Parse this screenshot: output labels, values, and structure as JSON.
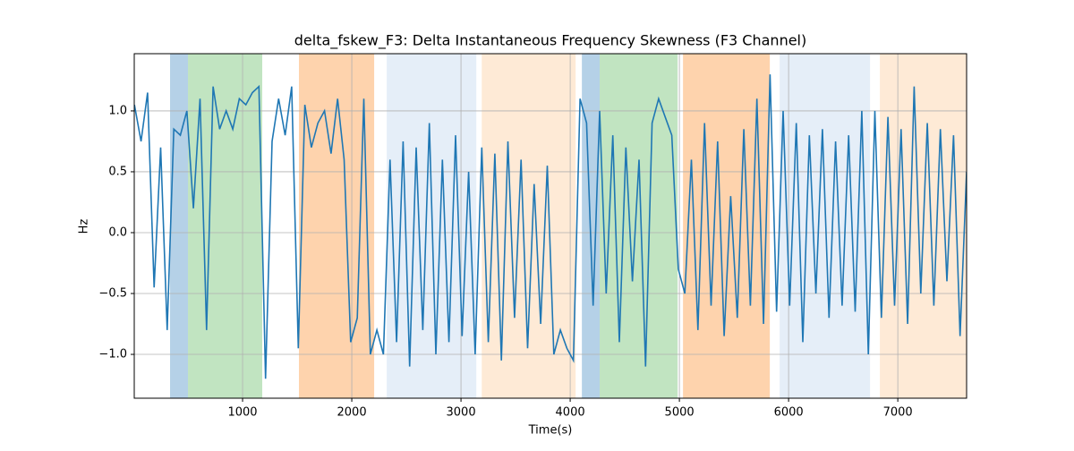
{
  "chart_data": {
    "type": "line",
    "title": "delta_fskew_F3: Delta Instantaneous Frequency Skewness (F3 Channel)",
    "x_label": "Time(s)",
    "y_label": "Hz",
    "xlim": [
      8,
      7630
    ],
    "ylim": [
      -1.36,
      1.47
    ],
    "xticks": [
      1000,
      2000,
      3000,
      4000,
      5000,
      6000,
      7000
    ],
    "yticks": [
      {
        "value": -1.0,
        "label": "−1.0"
      },
      {
        "value": -0.5,
        "label": "−0.5"
      },
      {
        "value": 0.0,
        "label": "0.0"
      },
      0.5,
      {
        "value": 1.0,
        "label": "1.0"
      }
    ],
    "grid": true,
    "spans": [
      {
        "start": 336,
        "end": 500,
        "color": "#b5d1e7"
      },
      {
        "start": 500,
        "end": 1180,
        "color": "#c1e4c1"
      },
      {
        "start": 1516,
        "end": 2205,
        "color": "#fed3ad"
      },
      {
        "start": 2320,
        "end": 3140,
        "color": "#e5eef8"
      },
      {
        "start": 3190,
        "end": 4050,
        "color": "#feead6"
      },
      {
        "start": 4107,
        "end": 4270,
        "color": "#b5d1e7"
      },
      {
        "start": 4270,
        "end": 4984,
        "color": "#c1e4c1"
      },
      {
        "start": 5033,
        "end": 5828,
        "color": "#fed3ad"
      },
      {
        "start": 5918,
        "end": 6746,
        "color": "#e5eef8"
      },
      {
        "start": 6836,
        "end": 7630,
        "color": "#feead6"
      }
    ],
    "x": [
      10,
      70,
      130,
      190,
      250,
      310,
      370,
      430,
      490,
      550,
      610,
      670,
      730,
      790,
      850,
      910,
      970,
      1030,
      1090,
      1150,
      1210,
      1270,
      1330,
      1390,
      1450,
      1510,
      1570,
      1630,
      1690,
      1750,
      1810,
      1870,
      1930,
      1990,
      2050,
      2110,
      2170,
      2230,
      2290,
      2350,
      2410,
      2470,
      2530,
      2590,
      2650,
      2710,
      2770,
      2830,
      2890,
      2950,
      3010,
      3070,
      3130,
      3190,
      3250,
      3310,
      3370,
      3430,
      3490,
      3550,
      3610,
      3670,
      3730,
      3790,
      3850,
      3910,
      3970,
      4030,
      4090,
      4150,
      4210,
      4270,
      4330,
      4390,
      4450,
      4510,
      4570,
      4630,
      4690,
      4750,
      4810,
      4870,
      4930,
      4990,
      5050,
      5110,
      5170,
      5230,
      5290,
      5350,
      5410,
      5470,
      5530,
      5590,
      5650,
      5710,
      5770,
      5830,
      5890,
      5950,
      6010,
      6070,
      6130,
      6190,
      6250,
      6310,
      6370,
      6430,
      6490,
      6550,
      6610,
      6670,
      6730,
      6790,
      6850,
      6910,
      6970,
      7030,
      7090,
      7150,
      7210,
      7270,
      7330,
      7390,
      7450,
      7510,
      7570,
      7630
    ],
    "series": [
      {
        "color": "#1f77b4",
        "values": [
          1.05,
          0.75,
          1.15,
          -0.45,
          0.7,
          -0.8,
          0.85,
          0.8,
          1.0,
          0.2,
          1.1,
          -0.8,
          1.2,
          0.85,
          1.0,
          0.85,
          1.1,
          1.05,
          1.15,
          1.2,
          -1.2,
          0.75,
          1.1,
          0.8,
          1.2,
          -0.95,
          1.05,
          0.7,
          0.9,
          1.0,
          0.65,
          1.1,
          0.6,
          -0.9,
          -0.7,
          1.1,
          -1.0,
          -0.8,
          -1.0,
          0.6,
          -0.9,
          0.75,
          -1.1,
          0.7,
          -0.8,
          0.9,
          -1.0,
          0.6,
          -0.9,
          0.8,
          -0.85,
          0.5,
          -1.0,
          0.7,
          -0.9,
          0.65,
          -1.05,
          0.75,
          -0.7,
          0.6,
          -0.95,
          0.4,
          -0.75,
          0.55,
          -1.0,
          -0.8,
          -0.95,
          -1.05,
          1.1,
          0.9,
          -0.6,
          1.0,
          -0.5,
          0.8,
          -0.9,
          0.7,
          -0.4,
          0.6,
          -1.1,
          0.9,
          1.1,
          0.95,
          0.8,
          -0.3,
          -0.5,
          0.6,
          -0.8,
          0.9,
          -0.6,
          0.75,
          -0.85,
          0.3,
          -0.7,
          0.85,
          -0.6,
          1.1,
          -0.75,
          1.3,
          -0.65,
          1.0,
          -0.6,
          0.9,
          -0.9,
          0.8,
          -0.5,
          0.85,
          -0.7,
          0.75,
          -0.6,
          0.8,
          -0.65,
          1.0,
          -1.0,
          1.0,
          -0.7,
          0.95,
          -0.6,
          0.85,
          -0.75,
          1.2,
          -0.5,
          0.9,
          -0.6,
          0.85,
          -0.4,
          0.8,
          -0.85,
          0.5
        ]
      }
    ]
  }
}
